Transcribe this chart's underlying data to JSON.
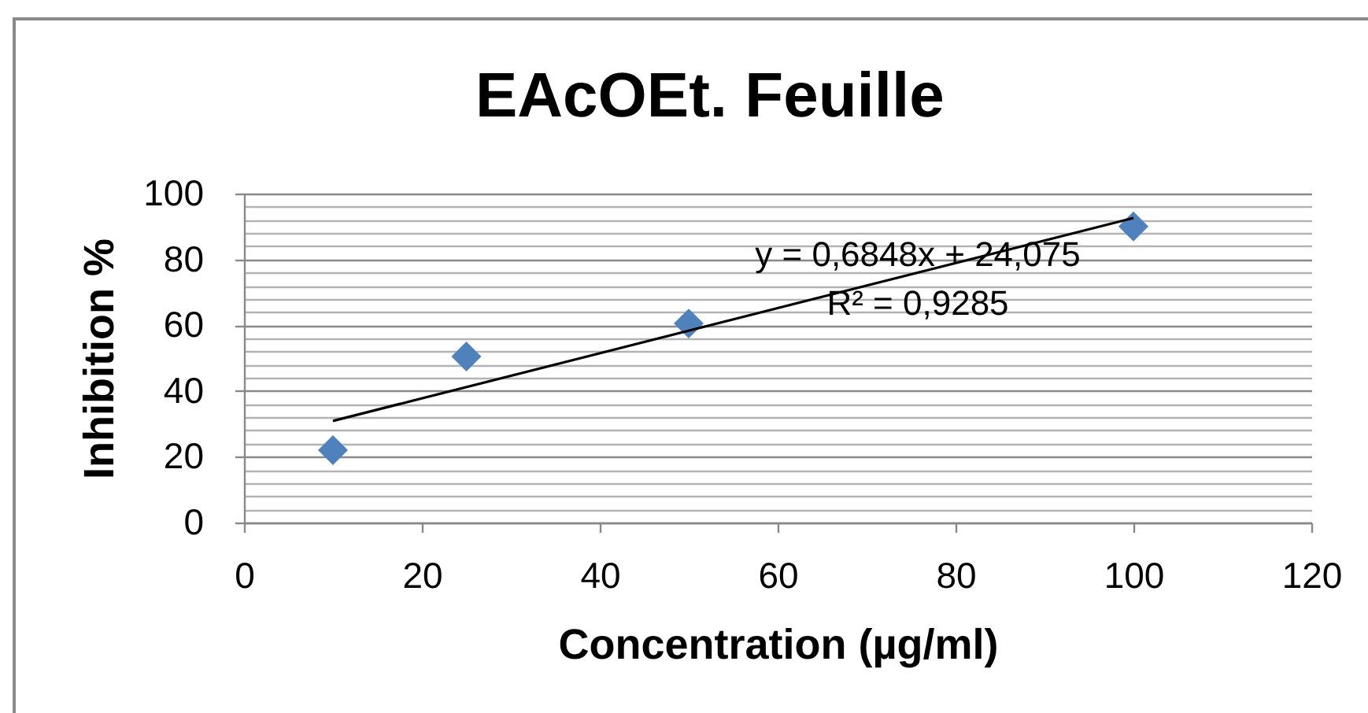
{
  "chart_data": {
    "type": "scatter",
    "title": "EAcOEt. Feuille",
    "xlabel": "Concentration (µg/ml)",
    "ylabel": "Inhibition %",
    "series": [
      {
        "color": "#4f81bd",
        "x": [
          10,
          25,
          50,
          100
        ],
        "values": [
          22,
          50.5,
          60.5,
          90
        ]
      },
      {
        "type": "line",
        "color": "#000000",
        "marker": "none",
        "x": [
          10,
          100
        ],
        "values": [
          30.9,
          92.6
        ]
      }
    ],
    "marker": "diamond",
    "xlim": [
      0,
      120
    ],
    "xticks": [
      0,
      20,
      40,
      60,
      80,
      100,
      120
    ],
    "ylim": [
      0,
      100
    ],
    "yticks": [
      0,
      {
        "value": 4,
        "label": null
      },
      {
        "value": 8,
        "label": null
      },
      {
        "value": 12,
        "label": null
      },
      {
        "value": 16,
        "label": null
      },
      20,
      {
        "value": 24,
        "label": null
      },
      {
        "value": 28,
        "label": null
      },
      {
        "value": 32,
        "label": null
      },
      {
        "value": 36,
        "label": null
      },
      40,
      {
        "value": 44,
        "label": null
      },
      {
        "value": 48,
        "label": null
      },
      {
        "value": 52,
        "label": null
      },
      {
        "value": 56,
        "label": null
      },
      60,
      {
        "value": 64,
        "label": null
      },
      {
        "value": 68,
        "label": null
      },
      {
        "value": 72,
        "label": null
      },
      {
        "value": 76,
        "label": null
      },
      80,
      {
        "value": 84,
        "label": null
      },
      {
        "value": 88,
        "label": null
      },
      {
        "value": 92,
        "label": null
      },
      {
        "value": 96,
        "label": null
      },
      100
    ],
    "grid": "y",
    "annotations": [
      "y = 0,6848x + 24,075",
      "R² = 0,9285"
    ]
  }
}
